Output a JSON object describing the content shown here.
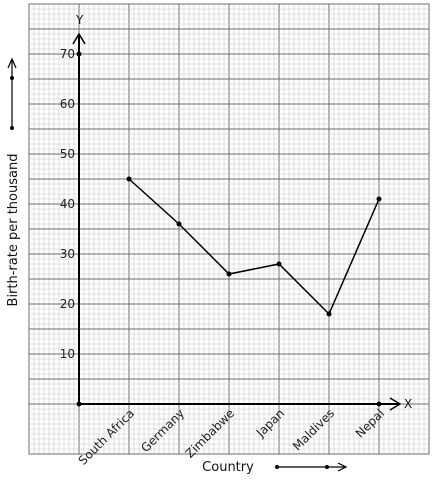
{
  "chart_data": {
    "type": "line",
    "title": "",
    "xlabel": "Country",
    "ylabel": "Birth-rate per thousand",
    "x_axis_letter": "X",
    "y_axis_letter": "Y",
    "categories": [
      "South Africa",
      "Germany",
      "Zimbabwe",
      "Japan",
      "Maldives",
      "Nepal"
    ],
    "series": [
      {
        "values": [
          45,
          36,
          26,
          28,
          18,
          41
        ]
      }
    ],
    "y_ticks": [
      10,
      20,
      30,
      40,
      50,
      60,
      70
    ],
    "y_tick_labels": [
      "10",
      "20",
      "30",
      "40",
      "50",
      "60",
      "70"
    ],
    "ylim": [
      0,
      70
    ],
    "grid": true,
    "colors": {
      "line": "#000000",
      "grid_minor": "#c8c8c8",
      "grid_major": "#6e6e6e",
      "axis": "#000000"
    }
  }
}
